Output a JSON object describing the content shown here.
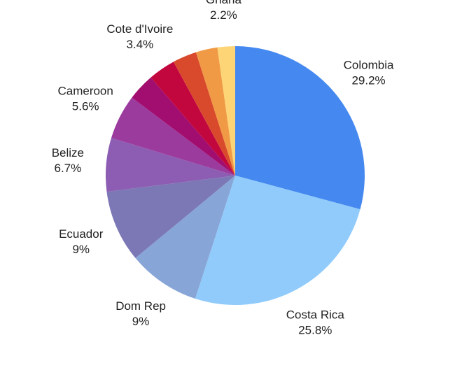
{
  "chart_data": {
    "type": "pie",
    "categories": [
      "Colombia",
      "Costa Rica",
      "Dom Rep",
      "Ecuador",
      "Belize",
      "Cameroon",
      null,
      "Cote d'Ivoire",
      null,
      null,
      "Ghana"
    ],
    "values": [
      29.2,
      25.8,
      9,
      9,
      6.7,
      5.6,
      3.4,
      3.4,
      3.0,
      2.7,
      2.2
    ],
    "value_labels": [
      "29.2%",
      "25.8%",
      "9%",
      "9%",
      "6.7%",
      "5.6%",
      null,
      "3.4%",
      null,
      null,
      "2.2%"
    ],
    "colors": [
      "#4589f0",
      "#90cbfb",
      "#87a5d6",
      "#7b78b5",
      "#8c5db2",
      "#9b3b9d",
      "#a20e6f",
      "#c2063e",
      "#d94a2d",
      "#f09a45",
      "#fdd577"
    ]
  }
}
